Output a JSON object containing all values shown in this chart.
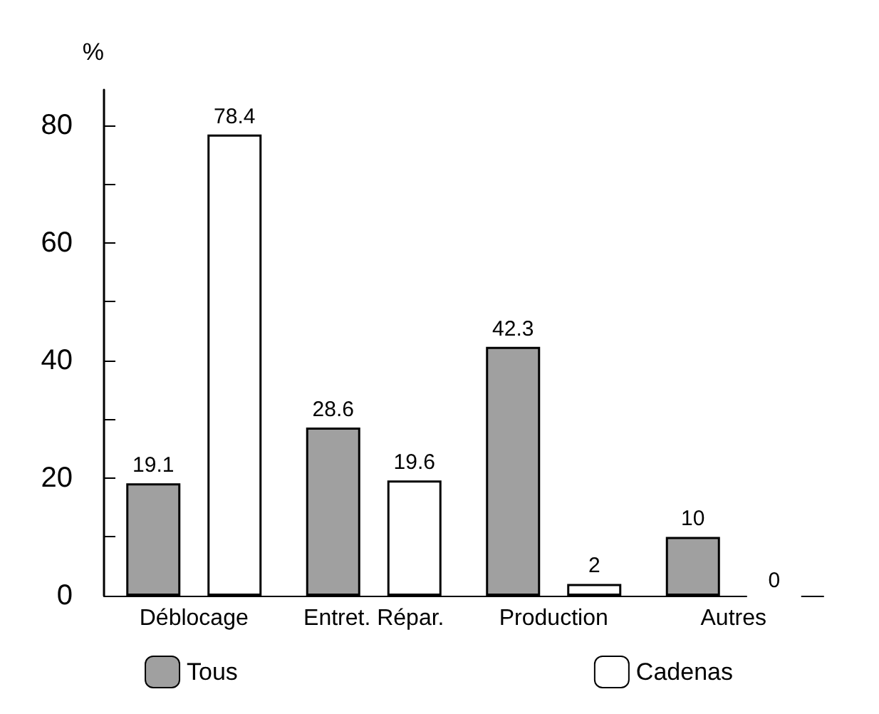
{
  "chart_data": {
    "type": "bar",
    "ylabel": "%",
    "categories": [
      "Déblocage",
      "Entret. Répar.",
      "Production",
      "Autres"
    ],
    "series": [
      {
        "name": "Tous",
        "color": "#a0a0a0",
        "values": [
          19.1,
          28.6,
          42.3,
          10
        ]
      },
      {
        "name": "Cadenas",
        "color": "#ffffff",
        "values": [
          78.4,
          19.6,
          2,
          0
        ]
      }
    ],
    "ylim": [
      0,
      86
    ],
    "yticks": [
      0,
      {
        "value": 10,
        "label": null
      },
      20,
      {
        "value": 30,
        "label": null
      },
      40,
      {
        "value": 50,
        "label": null
      },
      60,
      {
        "value": 70,
        "label": null
      },
      80
    ],
    "data_labels": true,
    "grid": false,
    "legend": "bottom"
  }
}
